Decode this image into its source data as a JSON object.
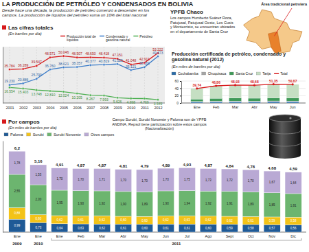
{
  "header": {
    "title": "LA PRODUCCIÓN DE PETRÓLEO Y CONDENSADOS EN BOLIVIA",
    "subtitle": "Desde hace una década, la producción de petróleo comenzó a descender en los campos. La producción de líquidos del petróleo suma un 10% del total nacional"
  },
  "map": {
    "title": "YPFB Chaco",
    "text": "Los campos Humberto Suárez Roca, Patujusal, Patujusal Oeste, Los Cusis y Montecristo, se encuentran ubicados en el departamento de Santa Cruz",
    "label": "Área tradicional petrolera"
  },
  "chart_data": [
    {
      "type": "line",
      "title": "Las cifras totales",
      "subtitle": "(En barriles por día)",
      "categories": [
        "2001",
        "2002",
        "2003",
        "2004",
        "2005",
        "2006",
        "2007",
        "2008",
        "2009",
        "2010",
        "2011",
        "2012"
      ],
      "series": [
        {
          "name": "Producción total de líquidos",
          "color": "#d7191c",
          "values": [
            35784,
            36289,
            39547,
            48571,
            50046,
            48507,
            48650,
            48418,
            47151,
            41048,
            42911,
            53222
          ],
          "value_labels": [
            "35.784",
            "36.289",
            "39.547",
            "48.571",
            "50.046",
            "48.507",
            "48.650",
            "48.418",
            "47.151",
            "41.048",
            "42.911",
            "53.222"
          ]
        },
        {
          "name": "Condensado y gasolina natural",
          "color": "#3a7bc8",
          "values": [
            19230,
            20886,
            25799,
            35760,
            38021,
            38357,
            40377,
            40819,
            41525,
            35121,
            38161,
            49673
          ],
          "value_labels": [
            "19.230",
            "20.886",
            "25.799",
            "35.760",
            "38.021",
            "38.357",
            "40.377",
            "40.819",
            "41.525",
            "35.121",
            "38.161",
            "49.673"
          ]
        },
        {
          "name": "Petróleo",
          "color": "#4caf50",
          "values": [
            16554,
            15403,
            13748,
            12810,
            12024,
            10205,
            8267,
            7993,
            5626,
            4898,
            4769,
            3549
          ],
          "value_labels": [
            "16.554",
            "15.403",
            "13.748",
            "12.810",
            "12.024",
            "10.205",
            "8.267",
            "7.993",
            "5.626",
            "4.898",
            "4.769",
            "3.549"
          ]
        }
      ],
      "ylim": [
        0,
        60000
      ],
      "tick_labels": "x",
      "grid": true,
      "data_labels": true,
      "legend": "top",
      "marker": "circle"
    },
    {
      "type": "bar",
      "stacked": true,
      "title": "Producción certificada de petróleo, condensado y gasolina natural (2012)",
      "subtitle": "(En miles de barriles por día)",
      "categories": [
        "Ene",
        "Feb",
        "Mar",
        "Abr",
        "May",
        "Jun"
      ],
      "series": [
        {
          "name": "Cochabamba",
          "color": "#2a6ca8",
          "values": [
            3.0,
            3.5,
            3.6,
            3.5,
            3.8,
            3.7
          ]
        },
        {
          "name": "Chuquisaca",
          "color": "#a6a6a6",
          "values": [
            1.2,
            1.6,
            1.7,
            1.6,
            1.8,
            1.7
          ]
        },
        {
          "name": "Santa Cruz",
          "color": "#3f9a58",
          "values": [
            6.5,
            7.8,
            8.2,
            8.0,
            8.5,
            8.4
          ]
        },
        {
          "name": "Tarija",
          "color": "#c5dfc3",
          "values": [
            29.04,
            33.96,
            35.43,
            35.58,
            37.25,
            37.07
          ]
        },
        {
          "name": "Total",
          "type": "line",
          "color": "#d7191c",
          "marker": "circle",
          "data_labels": true,
          "values": [
            39.74,
            46.86,
            48.93,
            48.68,
            51.35,
            50.87
          ],
          "value_labels": [
            "39,74",
            "46,86",
            "48,93",
            "48,68",
            "51,35",
            "50,87"
          ]
        }
      ],
      "ylim": [
        0,
        60
      ],
      "yticks": [
        0,
        20,
        40,
        60
      ],
      "grid": true,
      "legend": "top"
    },
    {
      "type": "bar",
      "stacked": true,
      "title": "Por campos",
      "subtitle": "(En miles de barriles por día)",
      "annotation": "Campo Surubí, Surubí Noroeste y Paloma son de YPFB ANDINA, Repsol tiene participación sobre estos campos (Nacionalización)",
      "categories": [
        "Ene",
        "Ene",
        "Ene",
        "Feb",
        "Mar",
        "Abr",
        "May",
        "Jun",
        "Jul",
        "Ago",
        "Sept",
        "Oct",
        "Nov",
        "Dic"
      ],
      "groups": [
        {
          "label": "2009",
          "count": 1
        },
        {
          "label": "2010",
          "count": 1
        },
        {
          "label": "2011",
          "count": 12
        }
      ],
      "series": [
        {
          "name": "Paloma",
          "color": "#1f5a96",
          "values": [
            0.99,
            0.73,
            0.64,
            0.63,
            0.62,
            0.61,
            0.6,
            0.61,
            0.61,
            0.6,
            0.59,
            0.58,
            0.57,
            0.56
          ],
          "value_labels": [
            "0,99",
            "0,73",
            "0,64",
            "0,63",
            "0,62",
            "0,61",
            "0,60",
            "0,61",
            "0,61",
            "0,60",
            "0,59",
            "0,58",
            "0,57",
            "0,56"
          ]
        },
        {
          "name": "Surubí",
          "color": "#f3c318",
          "values": [
            0.88,
            0.6,
            0.62,
            0.61,
            0.62,
            0.6,
            0.6,
            0.62,
            0.63,
            0.62,
            0.62,
            0.61,
            0.59,
            0.58
          ],
          "value_labels": [
            "0,88",
            "0,60",
            "0,62",
            "0,61",
            "0,62",
            "0,60",
            "0,60",
            "0,62",
            "0,63",
            "0,62",
            "0,62",
            "0,61",
            "0,59",
            "0,58"
          ]
        },
        {
          "name": "Surubí Noroeste",
          "color": "#6cb56f",
          "values": [
            2.55,
            2.3,
            1.95,
            1.93,
            1.92,
            1.9,
            1.89,
            1.93,
            1.94,
            1.92,
            1.91,
            1.89,
            1.85,
            1.81
          ],
          "value_labels": [
            "2,55",
            "2,30",
            "1,95",
            "1,93",
            "1,92",
            "1,90",
            "1,89",
            "1,93",
            "1,94",
            "1,92",
            "1,91",
            "1,89",
            "1,85",
            "1,81"
          ]
        },
        {
          "name": "Otros campos",
          "color": "#b9a9d4",
          "values": [
            1.78,
            1.53,
            1.7,
            1.7,
            1.71,
            1.7,
            1.7,
            1.73,
            1.75,
            1.73,
            1.72,
            1.7,
            1.67,
            1.64
          ],
          "value_labels": [
            "1,78",
            "1,53",
            "1,70",
            "1,70",
            "1,71",
            "1,70",
            "1,70",
            "1,73",
            "1,75",
            "1,73",
            "1,72",
            "1,70",
            "1,67",
            "1,64"
          ]
        }
      ],
      "totals": {
        "values": [
          6.2,
          5.16,
          4.91,
          4.87,
          4.87,
          4.81,
          4.79,
          4.89,
          4.93,
          4.87,
          4.84,
          4.78,
          4.68,
          4.59
        ],
        "value_labels": [
          "6,2",
          "5,16",
          "4,91",
          "4,87",
          "4,87",
          "4,81",
          "4,79",
          "4,89",
          "4,93",
          "4,87",
          "4,84",
          "4,78",
          "4,68",
          "4,59"
        ]
      },
      "ylim": [
        0,
        7
      ],
      "tick_labels": "x",
      "data_labels": true,
      "legend": "top-left"
    }
  ]
}
